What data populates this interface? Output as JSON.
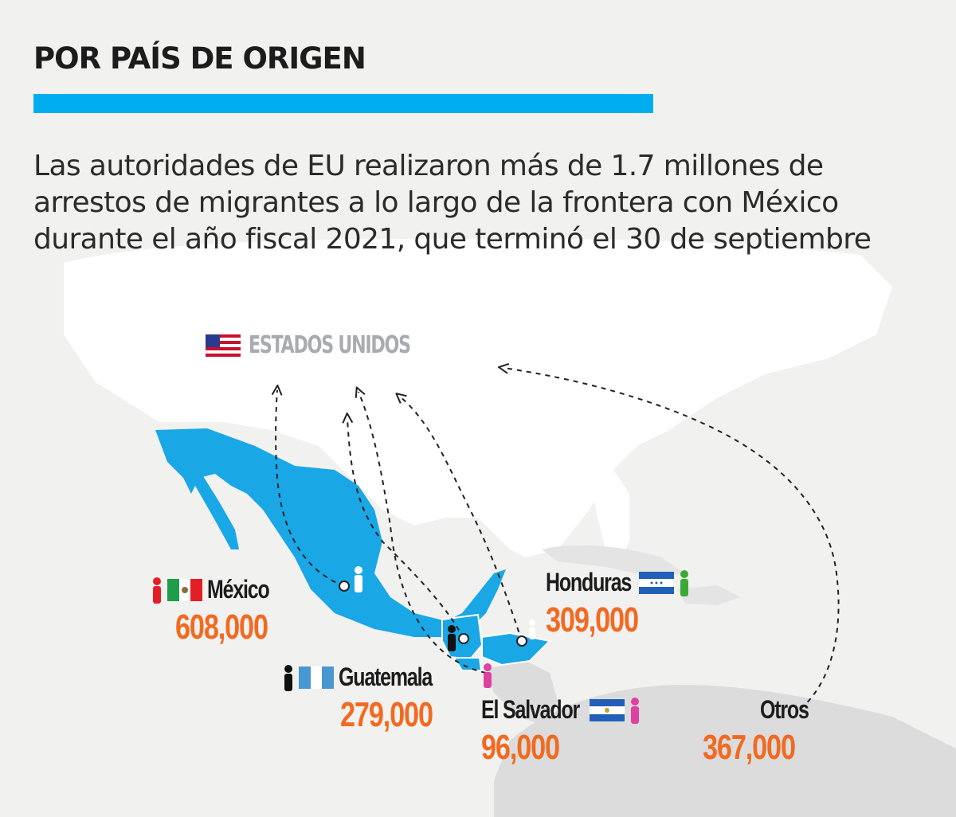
{
  "title": "POR PAÍS DE ORIGEN",
  "subtitle": "Las autoridades de EU realizaron más de 1.7 millones de arrestos de migrantes a lo largo de la frontera con México durante el año fiscal 2021, que terminó el 30 de septiembre",
  "destination": {
    "label": "ESTADOS UNIDOS",
    "icon": "us-flag-icon"
  },
  "origins": [
    {
      "name": "México",
      "value": "608,000",
      "icons": [
        "person-icon-red",
        "mexico-flag-icon"
      ]
    },
    {
      "name": "Guatemala",
      "value": "279,000",
      "icons": [
        "person-icon-black",
        "guatemala-flag-icon"
      ]
    },
    {
      "name": "El Salvador",
      "value": "96,000",
      "icons": [
        "el-salvador-flag-icon",
        "person-icon-pink"
      ]
    },
    {
      "name": "Honduras",
      "value": "309,000",
      "icons": [
        "honduras-flag-icon",
        "person-icon-green"
      ]
    },
    {
      "name": "Otros",
      "value": "367,000",
      "icons": []
    }
  ],
  "colors": {
    "accent": "#00aeef",
    "highlight_land": "#1aa7e6",
    "value_text": "#f26a21",
    "land": "#ffffff",
    "ocean": "#f1f1f0",
    "other_land": "#dcdcdc"
  }
}
